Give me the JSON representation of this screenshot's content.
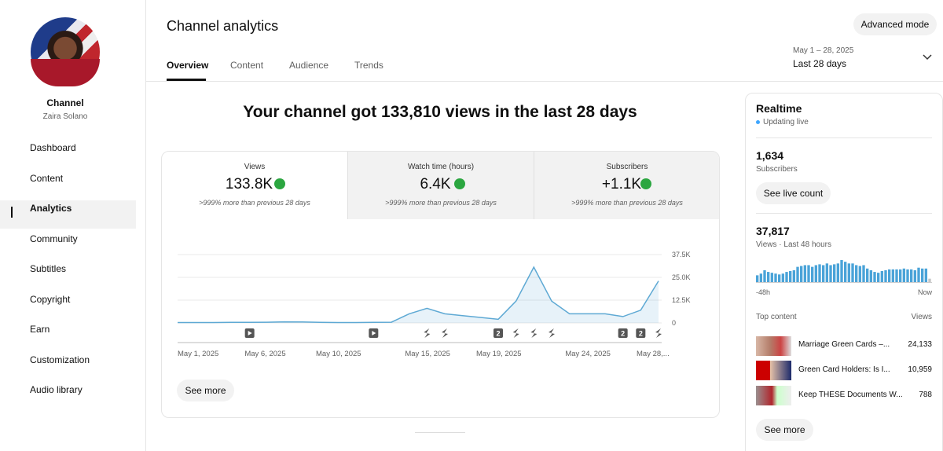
{
  "sidebar": {
    "channel_label": "Channel",
    "channel_name": "Zaira Solano",
    "nav": [
      "Dashboard",
      "Content",
      "Analytics",
      "Community",
      "Subtitles",
      "Copyright",
      "Earn",
      "Customization",
      "Audio library"
    ],
    "active_nav": 2
  },
  "header": {
    "title": "Channel analytics",
    "tabs": [
      "Overview",
      "Content",
      "Audience",
      "Trends"
    ],
    "active_tab": 0,
    "advanced_button": "Advanced mode",
    "date_range": "May 1 – 28, 2025",
    "period": "Last 28 days"
  },
  "summary": {
    "headline": "Your channel got 133,810 views in the last 28 days",
    "metrics": [
      {
        "label": "Views",
        "value": "133.8K",
        "note": ">999% more than previous 28 days"
      },
      {
        "label": "Watch time (hours)",
        "value": "6.4K",
        "note": ">999% more than previous 28 days"
      },
      {
        "label": "Subscribers",
        "value": "+1.1K",
        "note": ">999% more than previous 28 days"
      }
    ],
    "see_more": "See more"
  },
  "chart_data": {
    "type": "line",
    "categories": [
      "May 1, 2025",
      null,
      null,
      null,
      null,
      "May 6, 2025",
      null,
      null,
      null,
      "May 10, 2025",
      null,
      null,
      null,
      null,
      "May 15, 2025",
      null,
      null,
      null,
      "May 19, 2025",
      null,
      null,
      null,
      null,
      "May 24, 2025",
      null,
      null,
      null,
      "May 28,..."
    ],
    "values": [
      200,
      200,
      200,
      300,
      300,
      400,
      600,
      500,
      300,
      200,
      200,
      300,
      400,
      5000,
      8000,
      5000,
      4000,
      3000,
      2000,
      12000,
      30600,
      12000,
      5000,
      5000,
      5000,
      3500,
      7000,
      23000
    ],
    "color": "#5ea9d4",
    "ylim": [
      0,
      37500
    ],
    "yticks": [
      0,
      {
        "value": 12500,
        "label": "12.5K"
      },
      {
        "value": 25000,
        "label": "25.0K"
      },
      {
        "value": 37500,
        "label": "37.5K"
      }
    ],
    "grid": true,
    "badges": [
      "2",
      "2",
      "2"
    ]
  },
  "realtime": {
    "title": "Realtime",
    "status": "Updating live",
    "subscribers_value": "1,634",
    "subscribers_label": "Subscribers",
    "live_count_button": "See live count",
    "views_value": "37,817",
    "views_label": "Views · Last 48 hours",
    "bars": {
      "type": "bar",
      "color": "#4aa3d8",
      "values": [
        400,
        500,
        700,
        600,
        550,
        500,
        450,
        500,
        600,
        650,
        700,
        900,
        950,
        1000,
        1000,
        900,
        1000,
        1050,
        1000,
        1100,
        1000,
        1050,
        1100,
        1300,
        1200,
        1100,
        1100,
        1000,
        950,
        1000,
        800,
        700,
        600,
        550,
        650,
        700,
        750,
        750,
        750,
        750,
        800,
        750,
        750,
        700,
        850,
        800,
        800,
        200
      ]
    },
    "axis_start": "-48h",
    "axis_end": "Now",
    "top_content_label": "Top content",
    "views_column": "Views",
    "items": [
      {
        "title": "Marriage Green Cards –...",
        "views": "24,133"
      },
      {
        "title": "Green Card Holders: Is I...",
        "views": "10,959"
      },
      {
        "title": "Keep THESE Documents W...",
        "views": "788"
      }
    ],
    "see_more": "See more"
  }
}
